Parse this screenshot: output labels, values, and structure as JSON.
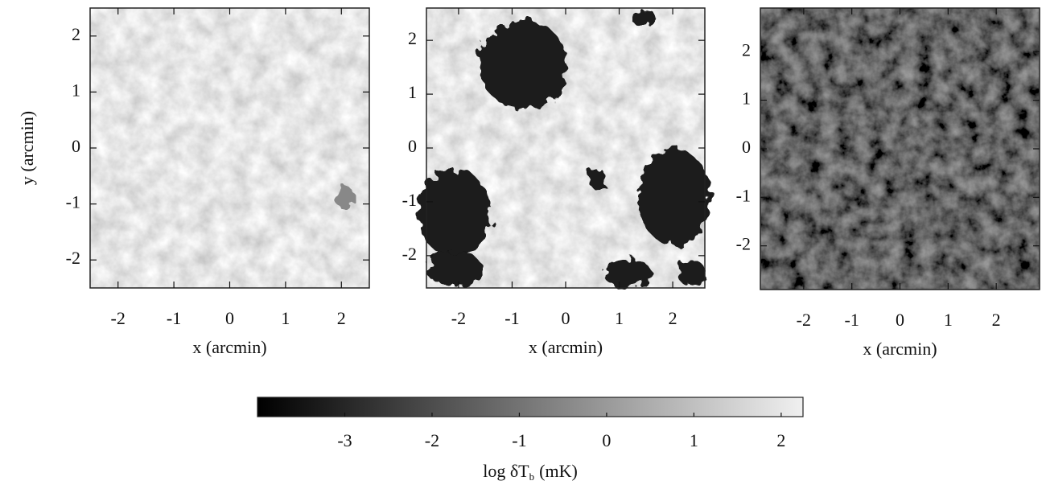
{
  "chart_data": [
    {
      "type": "image",
      "xlabel": "x (arcmin)",
      "ylabel": "y (arcmin)",
      "xlim": [
        -2.5,
        2.5
      ],
      "ylim": [
        -2.5,
        2.5
      ],
      "xticks": [
        -2,
        -1,
        0,
        1,
        2
      ],
      "yticks": [
        -2,
        -1,
        0,
        1,
        2
      ]
    },
    {
      "type": "image",
      "xlabel": "x (arcmin)",
      "xlim": [
        -2.6,
        2.6
      ],
      "ylim": [
        -2.6,
        2.6
      ],
      "xticks": [
        -2,
        -1,
        0,
        1,
        2
      ],
      "yticks": [
        -2,
        -1,
        0,
        1,
        2
      ]
    },
    {
      "type": "image",
      "xlabel": "x (arcmin)",
      "xlim": [
        -2.9,
        2.9
      ],
      "ylim": [
        -2.9,
        2.9
      ],
      "xticks": [
        -2,
        -1,
        0,
        1,
        2
      ],
      "yticks": [
        -2,
        -1,
        0,
        1,
        2
      ]
    },
    {
      "type": "colorbar",
      "xlabel": {
        "text": "log δT",
        "subscript": "b",
        "unit": "(mK)"
      },
      "xlim": [
        -4,
        2.25
      ],
      "xticks": [
        -3,
        -2,
        -1,
        0,
        1,
        2
      ]
    }
  ]
}
